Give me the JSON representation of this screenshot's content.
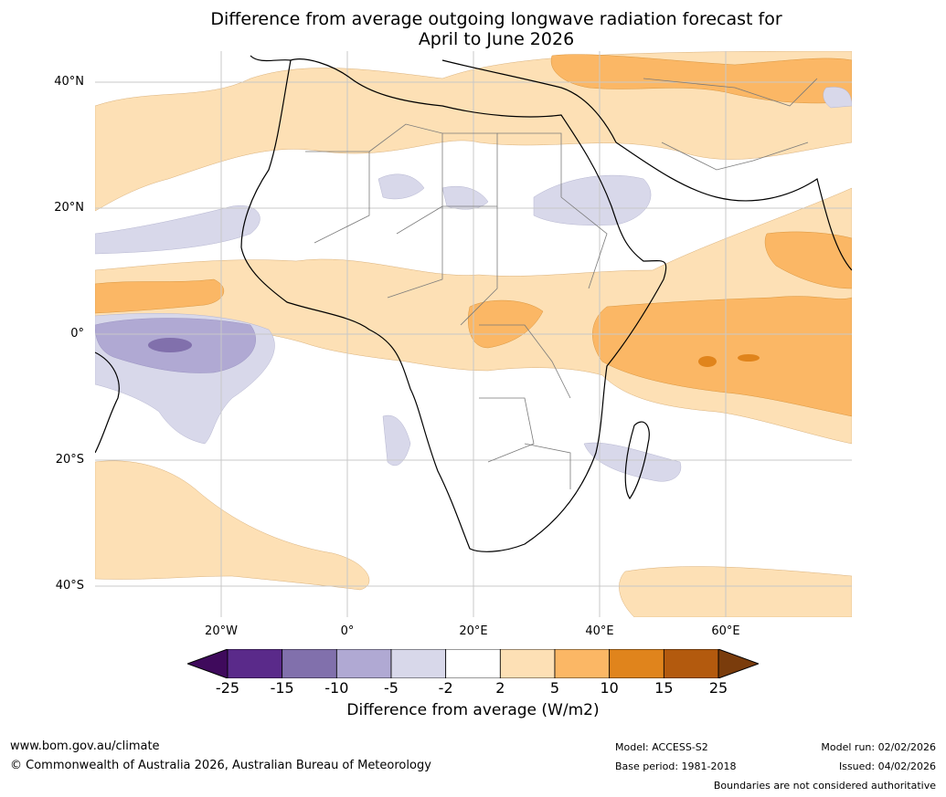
{
  "title": {
    "line1": "Difference from average outgoing longwave radiation forecast for",
    "line2": "April to June 2026"
  },
  "map": {
    "region": "Africa",
    "lat_labels": [
      "40°N",
      "20°N",
      "0°",
      "20°S",
      "40°S"
    ],
    "lon_labels": [
      "20°W",
      "0°",
      "20°E",
      "40°E",
      "60°E"
    ]
  },
  "colorbar": {
    "ticks": [
      "-25",
      "-15",
      "-10",
      "-5",
      "-2",
      "2",
      "5",
      "10",
      "15",
      "25"
    ],
    "colors": [
      "#3f0a5c",
      "#5a2a8a",
      "#8170ac",
      "#b0a9d3",
      "#d8d8ea",
      "#ffffff",
      "#fde0b5",
      "#fbb765",
      "#e0841c",
      "#b35a0e",
      "#7a3c0c"
    ],
    "title": "Difference from average (W/m2)"
  },
  "footer": {
    "url": "www.bom.gov.au/climate",
    "copyright": "© Commonwealth of Australia 2026, Australian Bureau of Meteorology",
    "model": "Model: ACCESS-S2",
    "base_period": "Base period: 1981-2018",
    "model_run": "Model run: 02/02/2026",
    "issued": "Issued: 04/02/2026",
    "disclaimer": "Boundaries are not considered authoritative"
  }
}
